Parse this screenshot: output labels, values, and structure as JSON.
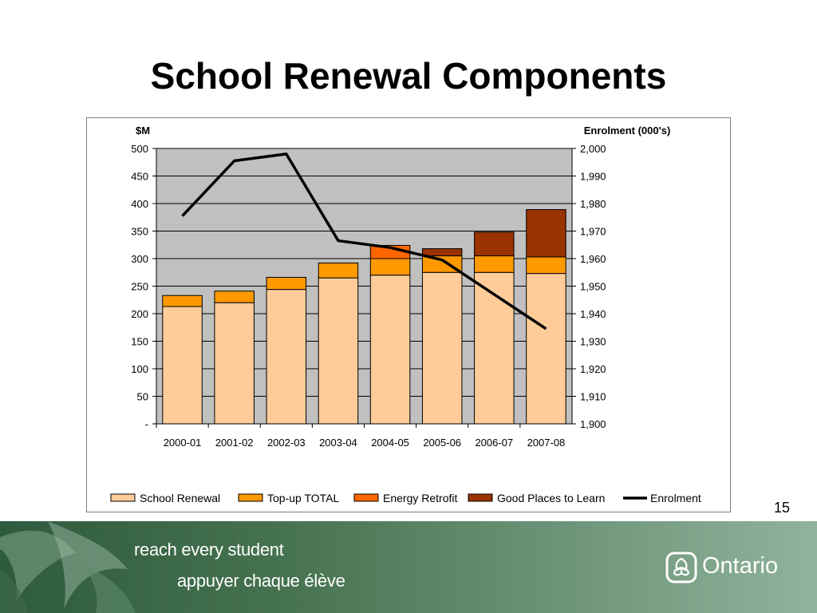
{
  "slide": {
    "title": "School Renewal Components",
    "page_number": "15",
    "tagline_en": "reach every student",
    "tagline_fr": "appuyer chaque élève",
    "logo_text": "Ontario",
    "logo_icon": "trillium-icon"
  },
  "colors": {
    "plot_bg": "#c0c0c0",
    "school_renewal": "#ffcc99",
    "top_up": "#ff9900",
    "energy_retrofit": "#ff6600",
    "good_places": "#993300",
    "enrolment_line": "#000000",
    "footer_green": "#46734f"
  },
  "chart_data": {
    "type": "bar",
    "stacked": true,
    "title": "",
    "categories": [
      "2000-01",
      "2001-02",
      "2002-03",
      "2003-04",
      "2004-05",
      "2005-06",
      "2006-07",
      "2007-08"
    ],
    "series": [
      {
        "name": "School Renewal",
        "values": [
          213,
          220,
          244,
          265,
          270,
          275,
          275,
          273
        ]
      },
      {
        "name": "Top-up TOTAL",
        "values": [
          20,
          21,
          22,
          27,
          30,
          30,
          30,
          30
        ]
      },
      {
        "name": "Energy Retrofit",
        "values": [
          0,
          0,
          0,
          0,
          24,
          0,
          0,
          0
        ]
      },
      {
        "name": "Good Places to Learn",
        "values": [
          0,
          0,
          0,
          0,
          0,
          13,
          43,
          86
        ]
      }
    ],
    "line_series": {
      "name": "Enrolment",
      "axis": "right",
      "values": [
        1975.5,
        1995.5,
        1998,
        1966.5,
        1964,
        1959.5,
        1947,
        1934.5
      ]
    },
    "ylabel_left": "$M",
    "ylabel_right": "Enrolment (000's)",
    "ylim_left": [
      0,
      500
    ],
    "ylim_right": [
      1900,
      2000
    ],
    "yticks_left": [
      "-",
      "50",
      "100",
      "150",
      "200",
      "250",
      "300",
      "350",
      "400",
      "450",
      "500"
    ],
    "yticks_right": [
      "1,900",
      "1,910",
      "1,920",
      "1,930",
      "1,940",
      "1,950",
      "1,960",
      "1,970",
      "1,980",
      "1,990",
      "2,000"
    ],
    "grid": true,
    "legend_position": "bottom",
    "legend": [
      "School Renewal",
      "Top-up TOTAL",
      "Energy Retrofit",
      "Good Places to Learn",
      "Enrolment"
    ]
  }
}
